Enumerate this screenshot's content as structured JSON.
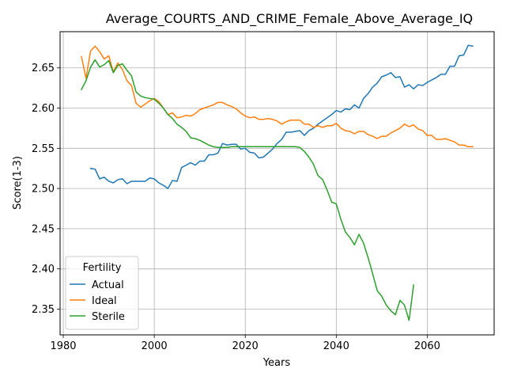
{
  "chart_data": {
    "type": "line",
    "title": "Average_COURTS_AND_CRIME_Female_Above_Average_IQ",
    "xlabel": "Years",
    "ylabel": "Score(1-3)",
    "xlim": [
      1979.3,
      2074.7
    ],
    "ylim": [
      2.318,
      2.695
    ],
    "x_ticks": [
      1980,
      2000,
      2020,
      2040,
      2060
    ],
    "y_ticks": [
      2.35,
      2.4,
      2.45,
      2.5,
      2.55,
      2.6,
      2.65
    ],
    "grid": true,
    "legend": {
      "title": "Fertility",
      "placement": "lower-left"
    },
    "series": [
      {
        "name": "Actual",
        "color": "#1f77b4",
        "x": [
          1986,
          1987,
          1988,
          1989,
          1990,
          1991,
          1992,
          1993,
          1994,
          1995,
          1996,
          1997,
          1998,
          1999,
          2000,
          2001,
          2002,
          2003,
          2004,
          2005,
          2006,
          2007,
          2008,
          2009,
          2010,
          2011,
          2012,
          2013,
          2014,
          2015,
          2016,
          2017,
          2018,
          2019,
          2020,
          2021,
          2022,
          2023,
          2024,
          2025,
          2026,
          2027,
          2028,
          2029,
          2030,
          2031,
          2032,
          2033,
          2034,
          2035,
          2036,
          2037,
          2038,
          2039,
          2040,
          2041,
          2042,
          2043,
          2044,
          2045,
          2046,
          2047,
          2048,
          2049,
          2050,
          2051,
          2052,
          2053,
          2054,
          2055,
          2056,
          2057,
          2058,
          2059,
          2060,
          2061,
          2062,
          2063,
          2064,
          2065,
          2066,
          2067,
          2068,
          2069,
          2070
        ],
        "values": [
          2.525,
          2.524,
          2.512,
          2.514,
          2.509,
          2.507,
          2.511,
          2.512,
          2.506,
          2.509,
          2.509,
          2.509,
          2.509,
          2.513,
          2.512,
          2.507,
          2.504,
          2.5,
          2.51,
          2.509,
          2.526,
          2.529,
          2.532,
          2.529,
          2.534,
          2.534,
          2.542,
          2.542,
          2.544,
          2.556,
          2.554,
          2.555,
          2.555,
          2.549,
          2.55,
          2.545,
          2.544,
          2.538,
          2.539,
          2.544,
          2.549,
          2.556,
          2.561,
          2.57,
          2.57,
          2.571,
          2.572,
          2.566,
          2.572,
          2.575,
          2.58,
          2.584,
          2.588,
          2.592,
          2.597,
          2.595,
          2.599,
          2.598,
          2.604,
          2.6,
          2.612,
          2.618,
          2.626,
          2.631,
          2.639,
          2.641,
          2.644,
          2.638,
          2.639,
          2.626,
          2.629,
          2.624,
          2.629,
          2.628,
          2.632,
          2.635,
          2.638,
          2.642,
          2.642,
          2.652,
          2.652,
          2.665,
          2.666,
          2.678,
          2.677
        ]
      },
      {
        "name": "Ideal",
        "color": "#ff7f0e",
        "x": [
          1984,
          1985,
          1986,
          1987,
          1988,
          1989,
          1990,
          1991,
          1992,
          1993,
          1994,
          1995,
          1996,
          1997,
          1998,
          1999,
          2000,
          2001,
          2002,
          2003,
          2004,
          2005,
          2006,
          2007,
          2008,
          2009,
          2010,
          2011,
          2012,
          2013,
          2014,
          2015,
          2016,
          2017,
          2018,
          2019,
          2020,
          2021,
          2022,
          2023,
          2024,
          2025,
          2026,
          2027,
          2028,
          2029,
          2030,
          2031,
          2032,
          2033,
          2034,
          2035,
          2036,
          2037,
          2038,
          2039,
          2040,
          2041,
          2042,
          2043,
          2044,
          2045,
          2046,
          2047,
          2048,
          2049,
          2050,
          2051,
          2052,
          2053,
          2054,
          2055,
          2056,
          2057,
          2058,
          2059,
          2060,
          2061,
          2062,
          2063,
          2064,
          2065,
          2066,
          2067,
          2068,
          2069,
          2070
        ],
        "values": [
          2.664,
          2.637,
          2.671,
          2.677,
          2.67,
          2.661,
          2.665,
          2.645,
          2.656,
          2.648,
          2.634,
          2.628,
          2.606,
          2.601,
          2.605,
          2.609,
          2.612,
          2.608,
          2.6,
          2.592,
          2.594,
          2.588,
          2.589,
          2.591,
          2.59,
          2.593,
          2.598,
          2.6,
          2.602,
          2.604,
          2.607,
          2.607,
          2.604,
          2.602,
          2.599,
          2.594,
          2.59,
          2.588,
          2.589,
          2.586,
          2.586,
          2.587,
          2.586,
          2.584,
          2.58,
          2.583,
          2.585,
          2.585,
          2.585,
          2.58,
          2.58,
          2.576,
          2.578,
          2.576,
          2.578,
          2.578,
          2.581,
          2.575,
          2.572,
          2.571,
          2.568,
          2.571,
          2.571,
          2.567,
          2.565,
          2.562,
          2.565,
          2.565,
          2.569,
          2.572,
          2.575,
          2.58,
          2.577,
          2.579,
          2.574,
          2.572,
          2.566,
          2.566,
          2.561,
          2.561,
          2.562,
          2.56,
          2.558,
          2.554,
          2.554,
          2.552,
          2.552
        ]
      },
      {
        "name": "Sterile",
        "color": "#2ca02c",
        "x": [
          1984,
          1985,
          1986,
          1987,
          1988,
          1989,
          1990,
          1991,
          1992,
          1993,
          1994,
          1995,
          1996,
          1997,
          1998,
          1999,
          2000,
          2001,
          2002,
          2003,
          2004,
          2005,
          2006,
          2007,
          2008,
          2009,
          2010,
          2011,
          2012,
          2013,
          2014,
          2015,
          2016,
          2017,
          2018,
          2019,
          2020,
          2021,
          2022,
          2023,
          2024,
          2025,
          2026,
          2027,
          2028,
          2029,
          2030,
          2031,
          2032,
          2033,
          2034,
          2035,
          2036,
          2037,
          2038,
          2039,
          2040,
          2041,
          2042,
          2043,
          2044,
          2045,
          2046,
          2047,
          2048,
          2049,
          2050,
          2051,
          2052,
          2053,
          2054,
          2055,
          2056,
          2057
        ],
        "values": [
          2.623,
          2.634,
          2.651,
          2.66,
          2.651,
          2.654,
          2.659,
          2.644,
          2.653,
          2.655,
          2.647,
          2.64,
          2.62,
          2.615,
          2.613,
          2.612,
          2.611,
          2.606,
          2.6,
          2.592,
          2.587,
          2.58,
          2.576,
          2.571,
          2.563,
          2.562,
          2.56,
          2.557,
          2.554,
          2.552,
          2.551,
          2.551,
          2.551,
          2.552,
          2.552,
          2.552,
          2.552,
          2.552,
          2.552,
          2.552,
          2.552,
          2.552,
          2.552,
          2.552,
          2.552,
          2.552,
          2.552,
          2.552,
          2.551,
          2.546,
          2.539,
          2.53,
          2.516,
          2.511,
          2.498,
          2.483,
          2.481,
          2.462,
          2.446,
          2.439,
          2.43,
          2.443,
          2.432,
          2.414,
          2.394,
          2.373,
          2.366,
          2.355,
          2.348,
          2.343,
          2.361,
          2.355,
          2.336,
          2.38
        ]
      }
    ]
  }
}
